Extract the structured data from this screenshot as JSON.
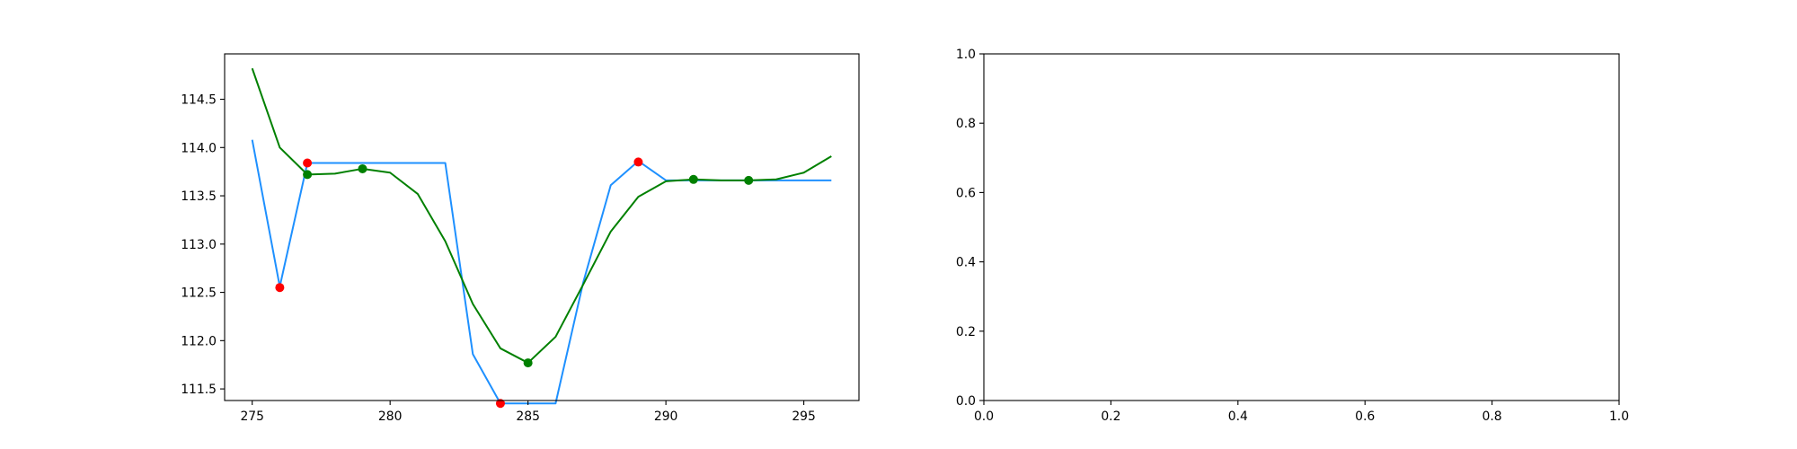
{
  "chart_data": [
    {
      "type": "line",
      "title": "",
      "xlabel": "",
      "ylabel": "",
      "xlim": [
        274.0,
        297.0
      ],
      "ylim": [
        111.38,
        114.97
      ],
      "xticks": [
        275,
        280,
        285,
        290,
        295
      ],
      "xtick_labels": [
        "275",
        "280",
        "285",
        "290",
        "295"
      ],
      "yticks": [
        111.5,
        112.0,
        112.5,
        113.0,
        113.5,
        114.0,
        114.5
      ],
      "ytick_labels": [
        "111.5",
        "112.0",
        "112.5",
        "113.0",
        "113.5",
        "114.0",
        "114.5"
      ],
      "grid": false,
      "series": [
        {
          "kind": "line",
          "color": "#1e90ff",
          "x": [
            275,
            276,
            277,
            278,
            279,
            280,
            281,
            282,
            283,
            284,
            285,
            286,
            287,
            288,
            289,
            290,
            291,
            292,
            293,
            294,
            295,
            296
          ],
          "y": [
            114.08,
            112.56,
            113.84,
            113.84,
            113.84,
            113.84,
            113.84,
            113.84,
            111.86,
            111.35,
            111.35,
            111.35,
            112.6,
            113.61,
            113.86,
            113.66,
            113.66,
            113.66,
            113.66,
            113.66,
            113.66,
            113.66
          ]
        },
        {
          "kind": "line",
          "color": "#008000",
          "x": [
            275,
            276,
            277,
            278,
            279,
            280,
            281,
            282,
            283,
            284,
            285,
            286,
            287,
            288,
            289,
            290,
            291,
            292,
            293,
            294,
            295,
            296
          ],
          "y": [
            114.82,
            114.0,
            113.72,
            113.73,
            113.78,
            113.74,
            113.52,
            113.03,
            112.38,
            111.92,
            111.77,
            112.04,
            112.58,
            113.13,
            113.49,
            113.65,
            113.67,
            113.66,
            113.66,
            113.67,
            113.74,
            113.91
          ]
        },
        {
          "kind": "scatter",
          "color": "#ff0000",
          "x": [
            276,
            277,
            284,
            289
          ],
          "y": [
            112.55,
            113.84,
            111.35,
            113.85
          ]
        },
        {
          "kind": "scatter",
          "color": "#008000",
          "x": [
            277,
            279,
            285,
            291,
            293
          ],
          "y": [
            113.72,
            113.78,
            111.77,
            113.67,
            113.66
          ]
        }
      ]
    },
    {
      "type": "line",
      "title": "",
      "xlabel": "",
      "ylabel": "",
      "xlim": [
        0.0,
        1.0
      ],
      "ylim": [
        0.0,
        1.0
      ],
      "xticks": [
        0.0,
        0.2,
        0.4,
        0.6,
        0.8,
        1.0
      ],
      "xtick_labels": [
        "0.0",
        "0.2",
        "0.4",
        "0.6",
        "0.8",
        "1.0"
      ],
      "yticks": [
        0.0,
        0.2,
        0.4,
        0.6,
        0.8,
        1.0
      ],
      "ytick_labels": [
        "0.0",
        "0.2",
        "0.4",
        "0.6",
        "0.8",
        "1.0"
      ],
      "grid": false,
      "series": []
    }
  ]
}
